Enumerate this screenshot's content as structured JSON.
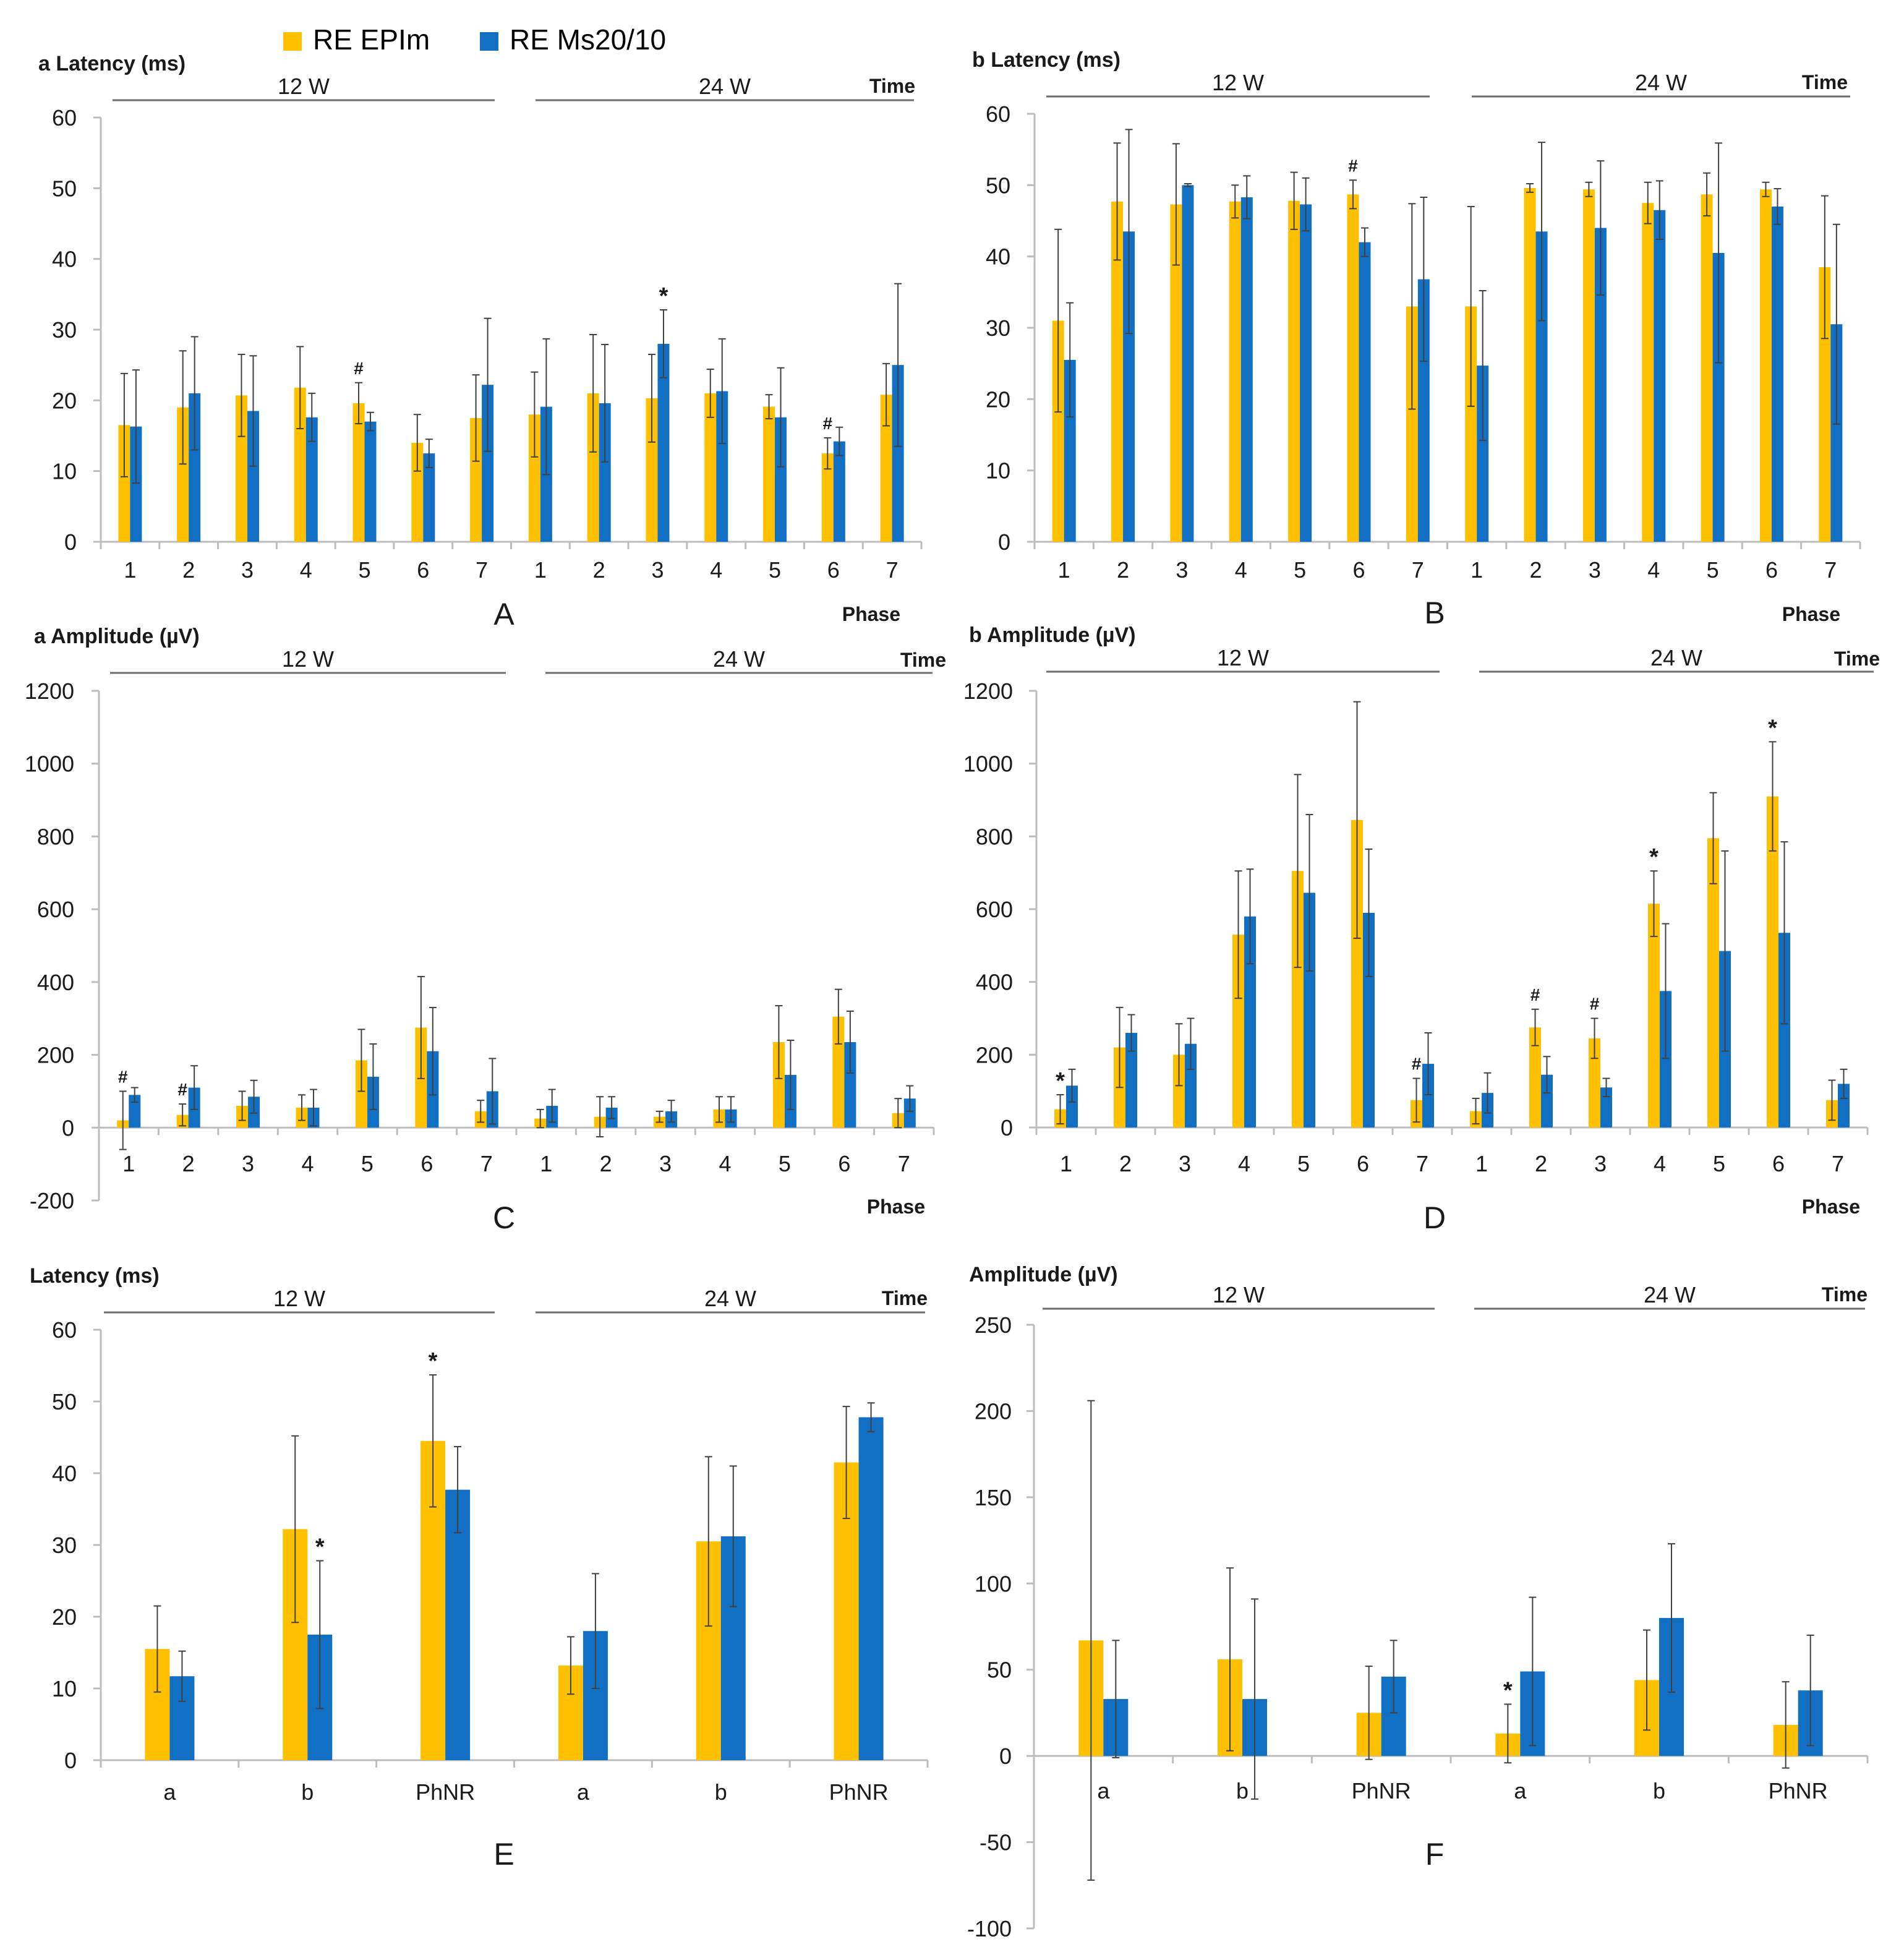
{
  "legend": {
    "series": [
      {
        "name": "RE EPIm",
        "color": "#FFC000"
      },
      {
        "name": "RE Ms20/10",
        "color": "#1170C4"
      }
    ]
  },
  "colors": {
    "series1": "#FFC000",
    "series2": "#1170C4",
    "axis": "#bdbdbd",
    "text": "#1a1a1a",
    "errorbar": "#404040"
  },
  "chart_data": [
    {
      "id": "A",
      "type": "bar",
      "panel_label": "A",
      "title": "a Latency (ms)",
      "group_labels": [
        "12 W",
        "24 W"
      ],
      "time_label": "Time",
      "xlabel": "Phase",
      "categories": [
        "1",
        "2",
        "3",
        "4",
        "5",
        "6",
        "7",
        "1",
        "2",
        "3",
        "4",
        "5",
        "6",
        "7"
      ],
      "ylim": [
        0,
        60
      ],
      "yticks": [
        0,
        10,
        20,
        30,
        40,
        50,
        60
      ],
      "series": [
        {
          "name": "RE EPIm",
          "values": [
            16.5,
            19,
            20.7,
            21.8,
            19.6,
            14,
            17.5,
            18,
            21,
            20.3,
            21,
            19.1,
            12.5,
            20.8
          ],
          "errors": [
            7.3,
            8,
            5.8,
            5.8,
            2.9,
            4,
            6.1,
            6,
            8.3,
            6.2,
            3.4,
            1.7,
            2.2,
            4.4
          ]
        },
        {
          "name": "RE Ms20/10",
          "values": [
            16.3,
            21,
            18.5,
            17.6,
            17,
            12.5,
            22.2,
            19.1,
            19.6,
            28,
            21.3,
            17.6,
            14.2,
            25
          ],
          "errors": [
            8,
            8,
            7.8,
            3.4,
            1.3,
            2,
            9.4,
            9.6,
            8.3,
            4.8,
            7.4,
            7,
            2,
            11.5
          ]
        }
      ],
      "annotations": [
        {
          "cat": 4,
          "series": 0,
          "text": "#"
        },
        {
          "cat": 9,
          "series": 1,
          "text": "*"
        },
        {
          "cat": 12,
          "series": 0,
          "text": "#"
        }
      ]
    },
    {
      "id": "B",
      "type": "bar",
      "panel_label": "B",
      "title": "b Latency (ms)",
      "group_labels": [
        "12 W",
        "24 W"
      ],
      "time_label": "Time",
      "xlabel": "Phase",
      "categories": [
        "1",
        "2",
        "3",
        "4",
        "5",
        "6",
        "7",
        "1",
        "2",
        "3",
        "4",
        "5",
        "6",
        "7"
      ],
      "ylim": [
        0,
        60
      ],
      "yticks": [
        0,
        10,
        20,
        30,
        40,
        50,
        60
      ],
      "series": [
        {
          "name": "RE EPIm",
          "values": [
            31,
            47.7,
            47.3,
            47.7,
            47.8,
            48.7,
            33,
            33,
            49.6,
            49.4,
            47.5,
            48.7,
            49.4,
            38.5
          ],
          "errors": [
            12.8,
            8.2,
            8.5,
            2.3,
            4,
            2,
            14.4,
            14,
            0.6,
            1,
            2.9,
            3,
            1,
            10
          ]
        },
        {
          "name": "RE Ms20/10",
          "values": [
            25.5,
            43.5,
            50,
            48.3,
            47.3,
            42,
            36.8,
            24.7,
            43.5,
            44,
            46.5,
            40.5,
            47,
            30.5
          ],
          "errors": [
            8,
            14.3,
            0.2,
            3,
            3.7,
            2,
            11.5,
            10.5,
            12.5,
            9.4,
            4.1,
            15.4,
            2.5,
            14
          ]
        }
      ],
      "annotations": [
        {
          "cat": 5,
          "series": 0,
          "text": "#"
        }
      ]
    },
    {
      "id": "C",
      "type": "bar",
      "panel_label": "C",
      "title": "a Amplitude (µV)",
      "group_labels": [
        "12 W",
        "24 W"
      ],
      "time_label": "Time",
      "xlabel": "Phase",
      "categories": [
        "1",
        "2",
        "3",
        "4",
        "5",
        "6",
        "7",
        "1",
        "2",
        "3",
        "4",
        "5",
        "6",
        "7"
      ],
      "ylim": [
        -200,
        1200
      ],
      "yticks": [
        -200,
        0,
        200,
        400,
        600,
        800,
        1000,
        1200
      ],
      "series": [
        {
          "name": "RE EPIm",
          "values": [
            20,
            35,
            60,
            55,
            185,
            275,
            45,
            25,
            30,
            30,
            50,
            235,
            305,
            40
          ],
          "errors": [
            80,
            30,
            40,
            35,
            85,
            140,
            30,
            25,
            55,
            15,
            35,
            100,
            75,
            40
          ]
        },
        {
          "name": "RE Ms20/10",
          "values": [
            90,
            110,
            85,
            55,
            140,
            210,
            100,
            60,
            55,
            45,
            50,
            145,
            235,
            80
          ],
          "errors": [
            20,
            60,
            45,
            50,
            90,
            120,
            90,
            45,
            30,
            30,
            35,
            95,
            85,
            35
          ]
        }
      ],
      "annotations": [
        {
          "cat": 0,
          "series": 0,
          "text": "#"
        },
        {
          "cat": 1,
          "series": 0,
          "text": "#"
        }
      ]
    },
    {
      "id": "D",
      "type": "bar",
      "panel_label": "D",
      "title": "b Amplitude (µV)",
      "group_labels": [
        "12 W",
        "24 W"
      ],
      "time_label": "Time",
      "xlabel": "Phase",
      "categories": [
        "1",
        "2",
        "3",
        "4",
        "5",
        "6",
        "7",
        "1",
        "2",
        "3",
        "4",
        "5",
        "6",
        "7"
      ],
      "ylim": [
        0,
        1200
      ],
      "yticks": [
        0,
        200,
        400,
        600,
        800,
        1000,
        1200
      ],
      "series": [
        {
          "name": "RE EPIm",
          "values": [
            50,
            220,
            200,
            530,
            705,
            845,
            75,
            45,
            275,
            245,
            615,
            795,
            910,
            75
          ],
          "errors": [
            40,
            110,
            85,
            175,
            265,
            325,
            60,
            35,
            50,
            55,
            90,
            125,
            150,
            55
          ]
        },
        {
          "name": "RE Ms20/10",
          "values": [
            115,
            260,
            230,
            580,
            645,
            590,
            175,
            95,
            145,
            110,
            375,
            485,
            535,
            120
          ],
          "errors": [
            45,
            50,
            70,
            130,
            215,
            175,
            85,
            55,
            50,
            25,
            185,
            275,
            250,
            40
          ]
        }
      ],
      "annotations": [
        {
          "cat": 0,
          "series": 0,
          "text": "*"
        },
        {
          "cat": 6,
          "series": 0,
          "text": "#"
        },
        {
          "cat": 8,
          "series": 0,
          "text": "#"
        },
        {
          "cat": 9,
          "series": 0,
          "text": "#"
        },
        {
          "cat": 10,
          "series": 0,
          "text": "*"
        },
        {
          "cat": 12,
          "series": 0,
          "text": "*"
        }
      ]
    },
    {
      "id": "E",
      "type": "bar",
      "panel_label": "E",
      "title": "Latency (ms)",
      "group_labels": [
        "12 W",
        "24 W"
      ],
      "time_label": "Time",
      "xlabel": "",
      "categories": [
        "a",
        "b",
        "PhNR",
        "a",
        "b",
        "PhNR"
      ],
      "ylim": [
        0,
        60
      ],
      "yticks": [
        0,
        10,
        20,
        30,
        40,
        50,
        60
      ],
      "series": [
        {
          "name": "RE EPIm",
          "values": [
            15.5,
            32.2,
            44.5,
            13.2,
            30.5,
            41.5
          ],
          "errors": [
            6,
            13,
            9.2,
            4,
            11.8,
            7.8
          ]
        },
        {
          "name": "RE Ms20/10",
          "values": [
            11.7,
            17.5,
            37.7,
            18,
            31.2,
            47.8
          ],
          "errors": [
            3.5,
            10.3,
            6,
            8,
            9.8,
            2
          ]
        }
      ],
      "annotations": [
        {
          "cat": 1,
          "series": 1,
          "text": "*"
        },
        {
          "cat": 2,
          "series": 0,
          "text": "*"
        }
      ]
    },
    {
      "id": "F",
      "type": "bar",
      "panel_label": "F",
      "title": "Amplitude (µV)",
      "group_labels": [
        "12 W",
        "24 W"
      ],
      "time_label": "Time",
      "xlabel": "",
      "categories": [
        "a",
        "b",
        "PhNR",
        "a",
        "b",
        "PhNR"
      ],
      "ylim": [
        -100,
        250
      ],
      "yticks": [
        -100,
        -50,
        0,
        50,
        100,
        150,
        200,
        250
      ],
      "series": [
        {
          "name": "RE EPIm",
          "values": [
            67,
            56,
            25,
            13,
            44,
            18
          ],
          "errors": [
            139,
            53,
            27,
            17,
            29,
            25
          ]
        },
        {
          "name": "RE Ms20/10",
          "values": [
            33,
            33,
            46,
            49,
            80,
            38
          ],
          "errors": [
            34,
            58,
            21,
            43,
            43,
            32
          ]
        }
      ],
      "annotations": [
        {
          "cat": 3,
          "series": 0,
          "text": "*"
        }
      ]
    }
  ]
}
